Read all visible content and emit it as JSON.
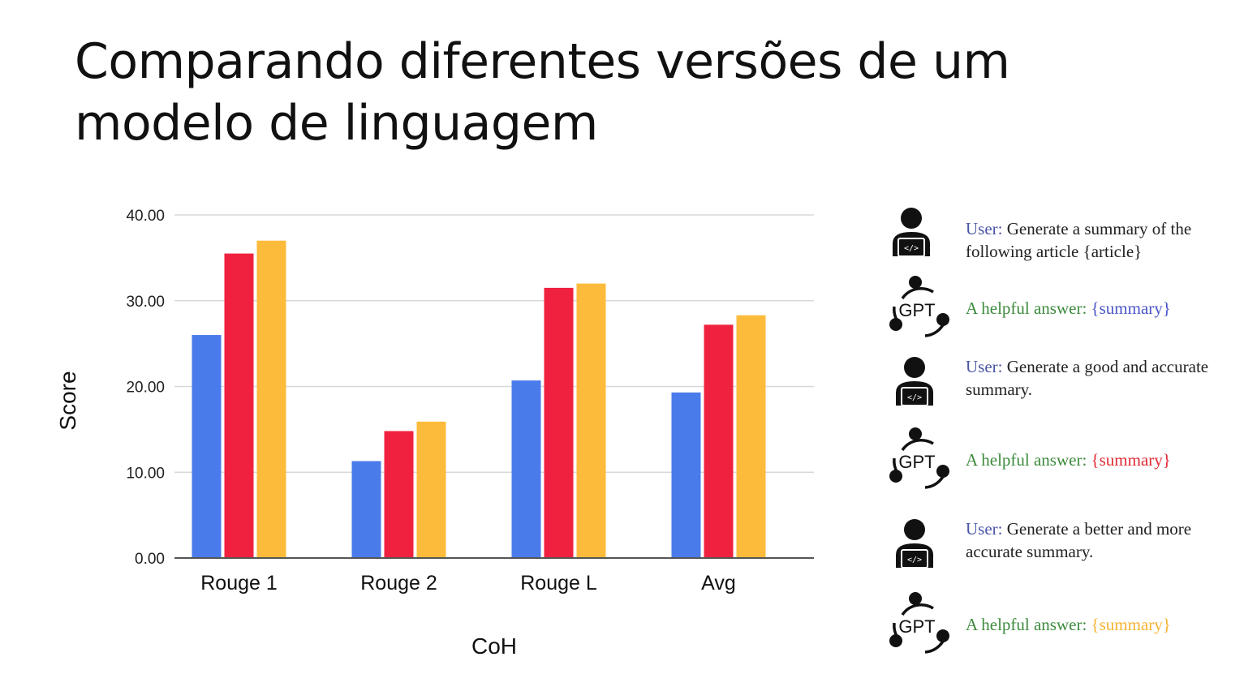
{
  "title_lines": [
    "Comparando diferentes versões de um",
    "modelo de linguagem"
  ],
  "chart_data": {
    "type": "bar",
    "xlabel": "CoH",
    "ylabel": "Score",
    "ylim": [
      0,
      40
    ],
    "yticks": [
      "0.00",
      "10.00",
      "20.00",
      "30.00",
      "40.00"
    ],
    "grid": true,
    "categories": [
      "Rouge 1",
      "Rouge 2",
      "Rouge L",
      "Avg"
    ],
    "series": [
      {
        "color": "#4a7bea",
        "values": [
          26.0,
          11.3,
          20.7,
          19.3
        ]
      },
      {
        "color": "#f0213e",
        "values": [
          35.5,
          14.8,
          31.5,
          27.2
        ]
      },
      {
        "color": "#fdbb3b",
        "values": [
          37.0,
          15.9,
          32.0,
          28.3
        ]
      }
    ]
  },
  "conversation": [
    {
      "icon": "user-laptop-icon",
      "label": "User:",
      "text": "Generate a summary of the following article {article}"
    },
    {
      "icon": "gpt-cycle-icon",
      "label": "A helpful answer:",
      "text": "{summary}",
      "color": "#4a56c8"
    },
    {
      "icon": "user-laptop-icon",
      "label": "User:",
      "text": "Generate a good and accurate summary."
    },
    {
      "icon": "gpt-cycle-icon",
      "label": "A helpful answer:",
      "text": "{summary}",
      "color": "#e02a35"
    },
    {
      "icon": "user-laptop-icon",
      "label": "User:",
      "text": "Generate a better and more accurate summary."
    },
    {
      "icon": "gpt-cycle-icon",
      "label": "A helpful answer:",
      "text": "{summary}",
      "color": "#f5b334"
    }
  ],
  "gpt_icon_text": "GPT"
}
